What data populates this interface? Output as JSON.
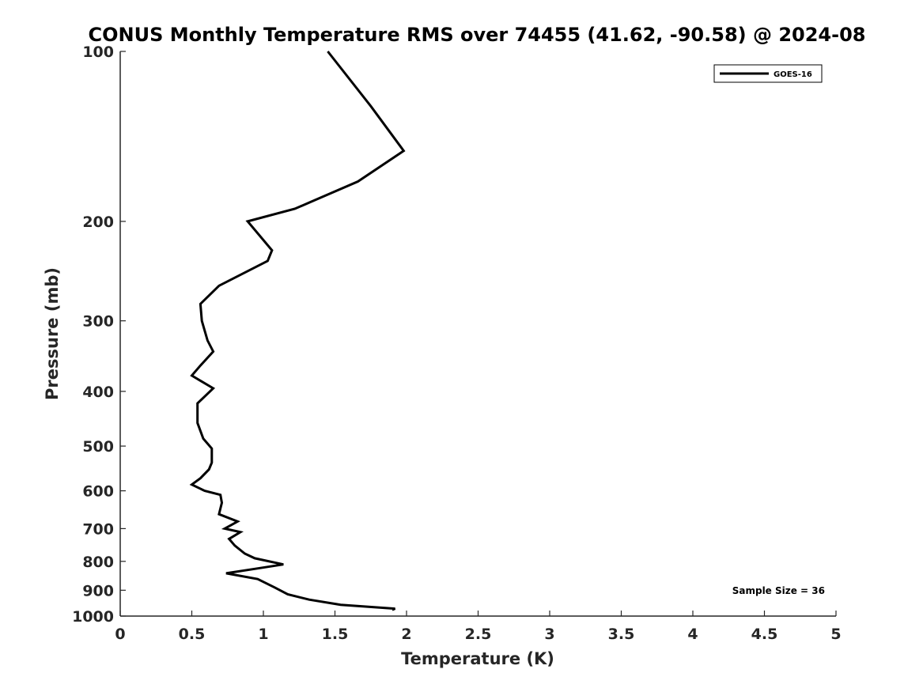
{
  "chart_data": {
    "type": "line",
    "title": "CONUS Monthly Temperature RMS over 74455 (41.62, -90.58) @ 2024-08",
    "xlabel": "Temperature (K)",
    "ylabel": "Pressure (mb)",
    "xlim": [
      0,
      5
    ],
    "ylim": [
      1000,
      100
    ],
    "y_scale": "log",
    "y_reversed": true,
    "x_ticks": [
      0,
      0.5,
      1,
      1.5,
      2,
      2.5,
      3,
      3.5,
      4,
      4.5,
      5
    ],
    "x_tick_labels": [
      "0",
      "0.5",
      "1",
      "1.5",
      "2",
      "2.5",
      "3",
      "3.5",
      "4",
      "4.5",
      "5"
    ],
    "y_ticks": [
      100,
      200,
      300,
      400,
      500,
      600,
      700,
      800,
      900,
      1000
    ],
    "y_tick_labels": [
      "100",
      "200",
      "300",
      "400",
      "500",
      "600",
      "700",
      "800",
      "900",
      "1000"
    ],
    "grid": false,
    "legend_placement": "top-right",
    "annotation": "Sample Size = 36",
    "line_color": "#000000",
    "series": [
      {
        "name": "GOES-16",
        "points": [
          [
            1.45,
            100
          ],
          [
            1.75,
            125
          ],
          [
            1.98,
            150
          ],
          [
            1.66,
            170
          ],
          [
            1.22,
            190
          ],
          [
            0.89,
            200
          ],
          [
            1.06,
            225
          ],
          [
            1.03,
            235
          ],
          [
            0.69,
            260
          ],
          [
            0.56,
            280
          ],
          [
            0.57,
            300
          ],
          [
            0.61,
            325
          ],
          [
            0.65,
            340
          ],
          [
            0.56,
            360
          ],
          [
            0.5,
            375
          ],
          [
            0.65,
            395
          ],
          [
            0.54,
            420
          ],
          [
            0.54,
            455
          ],
          [
            0.58,
            485
          ],
          [
            0.64,
            505
          ],
          [
            0.64,
            535
          ],
          [
            0.62,
            550
          ],
          [
            0.56,
            570
          ],
          [
            0.5,
            585
          ],
          [
            0.59,
            600
          ],
          [
            0.7,
            610
          ],
          [
            0.71,
            630
          ],
          [
            0.69,
            660
          ],
          [
            0.82,
            680
          ],
          [
            0.73,
            700
          ],
          [
            0.84,
            710
          ],
          [
            0.76,
            730
          ],
          [
            0.8,
            750
          ],
          [
            0.87,
            775
          ],
          [
            0.94,
            790
          ],
          [
            1.14,
            810
          ],
          [
            0.94,
            825
          ],
          [
            0.74,
            840
          ],
          [
            0.96,
            860
          ],
          [
            1.08,
            890
          ],
          [
            1.17,
            915
          ],
          [
            1.32,
            935
          ],
          [
            1.54,
            955
          ],
          [
            1.92,
            970
          ],
          [
            1.9,
            975
          ]
        ]
      }
    ]
  }
}
